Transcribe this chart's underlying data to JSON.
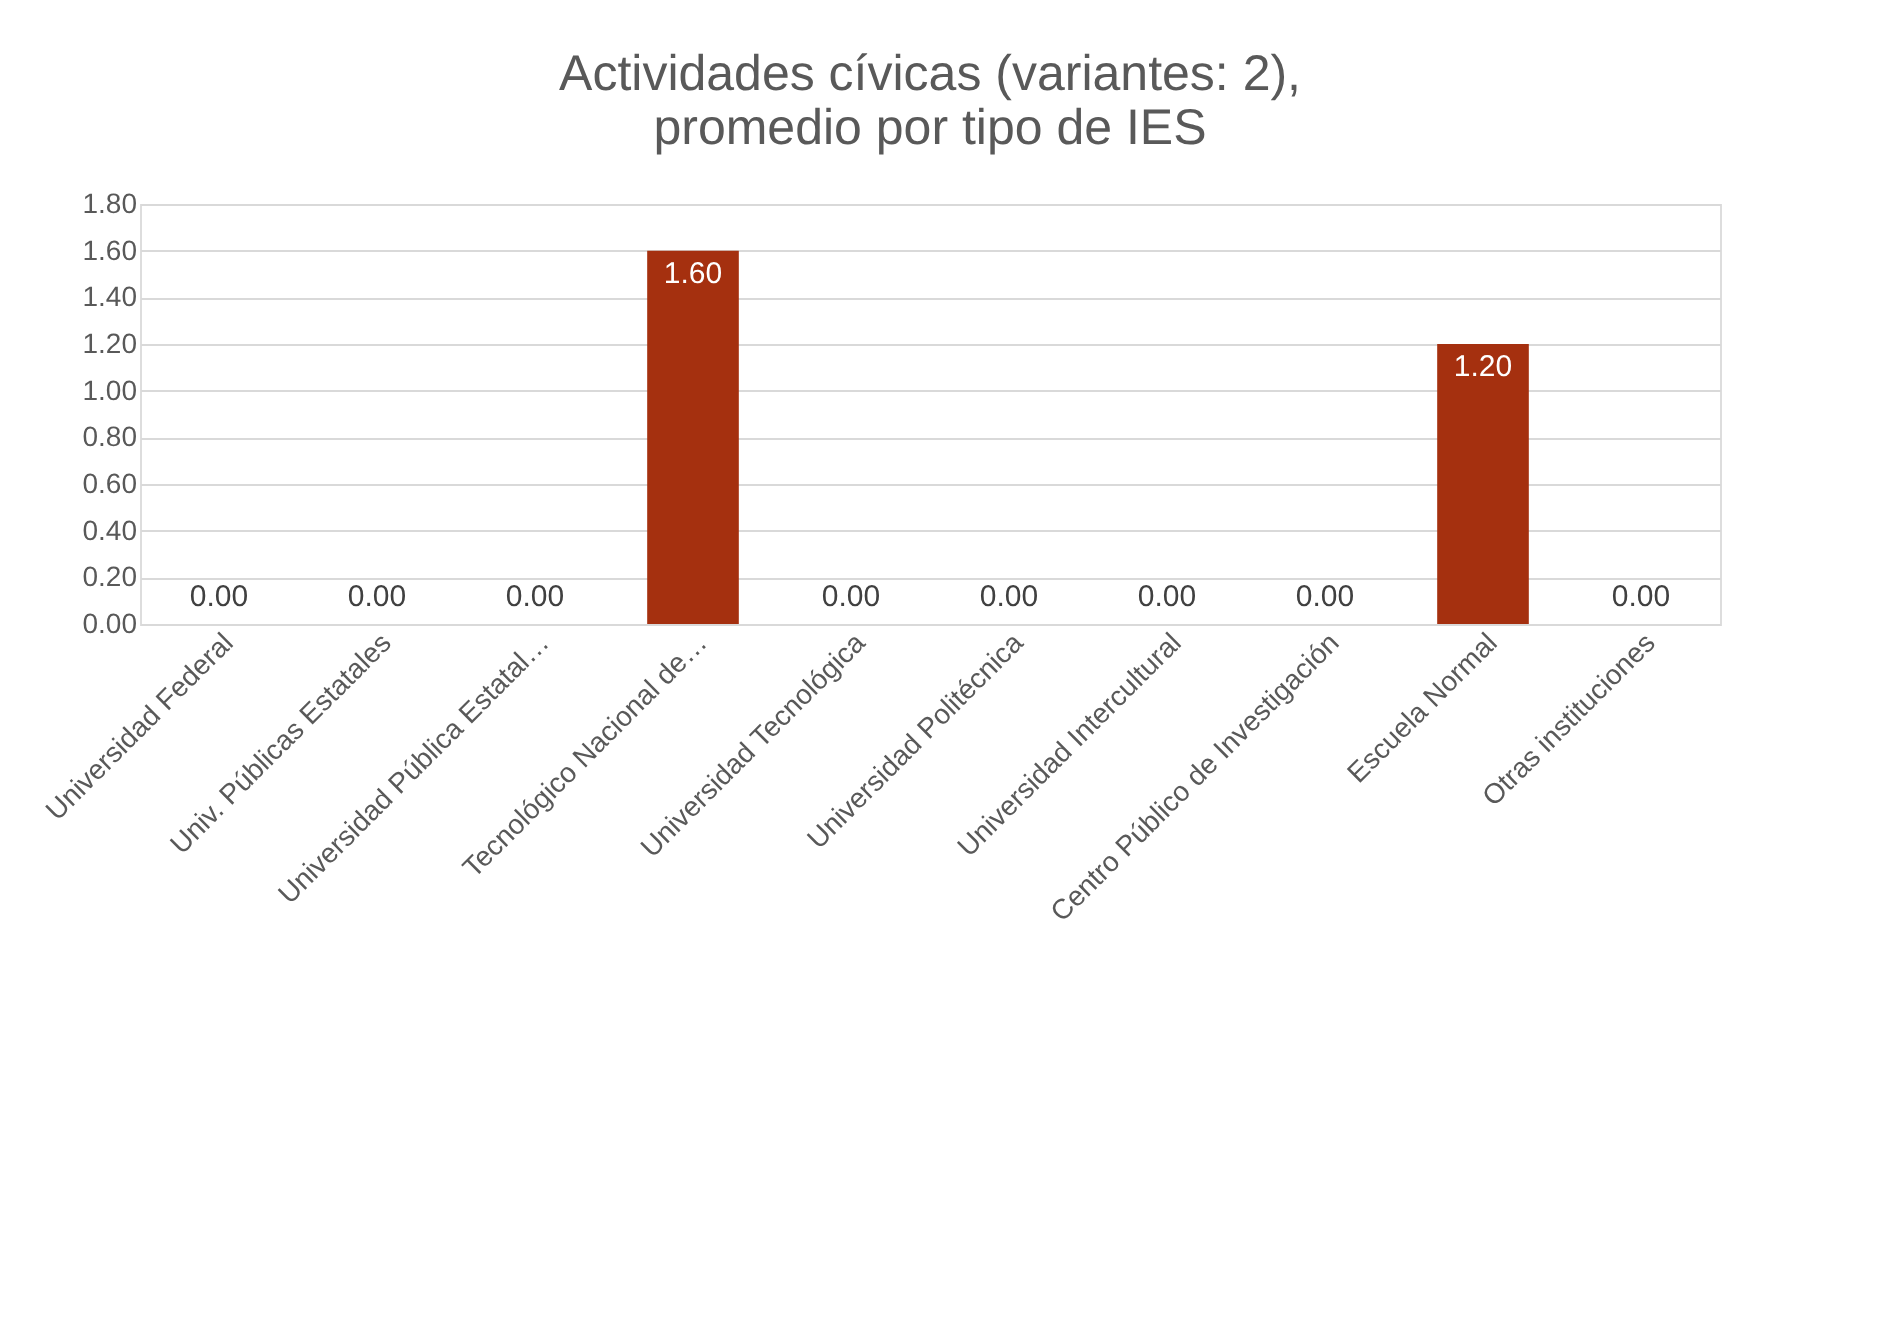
{
  "chart_data": {
    "type": "bar",
    "title": [
      "Actividades cívicas (variantes: 2),",
      "promedio por tipo de IES"
    ],
    "categories": [
      "Universidad Federal",
      "Univ. Públicas Estatales",
      "Universidad Pública Estatal…",
      "Tecnológico Nacional de…",
      "Universidad Tecnológica",
      "Universidad Politécnica",
      "Universidad Intercultural",
      "Centro Público de Investigación",
      "Escuela Normal",
      "Otras instituciones"
    ],
    "values": [
      0,
      0,
      0,
      1.6,
      0,
      0,
      0,
      0,
      1.2,
      0
    ],
    "value_labels": [
      "0.00",
      "0.00",
      "0.00",
      "1.60",
      "0.00",
      "0.00",
      "0.00",
      "0.00",
      "1.20",
      "0.00"
    ],
    "color": "#a5300f",
    "ylim": [
      0,
      1.8
    ],
    "yticks": [
      {
        "value": 0,
        "label": "0.00"
      },
      {
        "value": 0.2,
        "label": "0.20"
      },
      {
        "value": 0.4,
        "label": "0.40"
      },
      {
        "value": 0.6,
        "label": "0.60"
      },
      {
        "value": 0.8,
        "label": "0.80"
      },
      {
        "value": 1.0,
        "label": "1.00"
      },
      {
        "value": 1.2,
        "label": "1.20"
      },
      {
        "value": 1.4,
        "label": "1.40"
      },
      {
        "value": 1.6,
        "label": "1.60"
      },
      {
        "value": 1.8,
        "label": "1.80"
      }
    ],
    "grid": "y"
  }
}
